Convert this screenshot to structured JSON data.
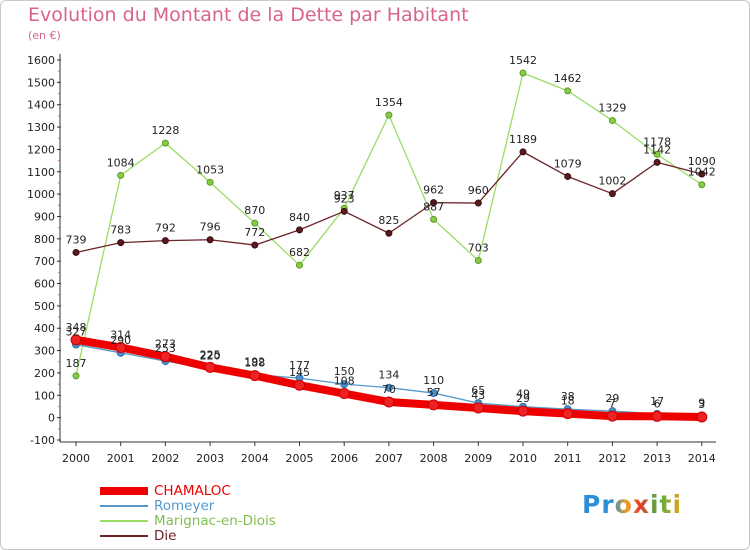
{
  "chart_data": {
    "type": "line",
    "title": "Evolution du Montant de la Dette par Habitant",
    "subtitle": "(en €)",
    "x": [
      "2000",
      "2001",
      "2002",
      "2003",
      "2004",
      "2005",
      "2006",
      "2007",
      "2008",
      "2009",
      "2010",
      "2011",
      "2012",
      "2013",
      "2014"
    ],
    "ylim": [
      -100,
      1600
    ],
    "yticks": [
      -100,
      0,
      100,
      200,
      300,
      400,
      500,
      600,
      700,
      800,
      900,
      1000,
      1100,
      1200,
      1300,
      1400,
      1500,
      1600
    ],
    "grid": false,
    "legend_position": "bottom-left",
    "series": [
      {
        "name": "Marignac-en-Diois",
        "color": "#99dd66",
        "values": [
          187,
          1084,
          1228,
          1053,
          870,
          682,
          937,
          1354,
          887,
          703,
          1542,
          1462,
          1329,
          1178,
          1042
        ]
      },
      {
        "name": "Die",
        "color": "#6b2328",
        "values": [
          739,
          783,
          792,
          796,
          772,
          840,
          923,
          825,
          962,
          960,
          1189,
          1079,
          1002,
          1142,
          1090
        ]
      },
      {
        "name": "Romeyer",
        "color": "#5599cc",
        "values": [
          327,
          290,
          253,
          220,
          192,
          177,
          150,
          134,
          110,
          65,
          49,
          38,
          29,
          17,
          9
        ]
      },
      {
        "name": "CHAMALOC",
        "color": "#ee0000",
        "values": [
          348,
          314,
          273,
          225,
          188,
          145,
          108,
          70,
          57,
          43,
          29,
          18,
          7,
          6,
          3
        ]
      }
    ]
  },
  "logo_text": "Proxiti"
}
